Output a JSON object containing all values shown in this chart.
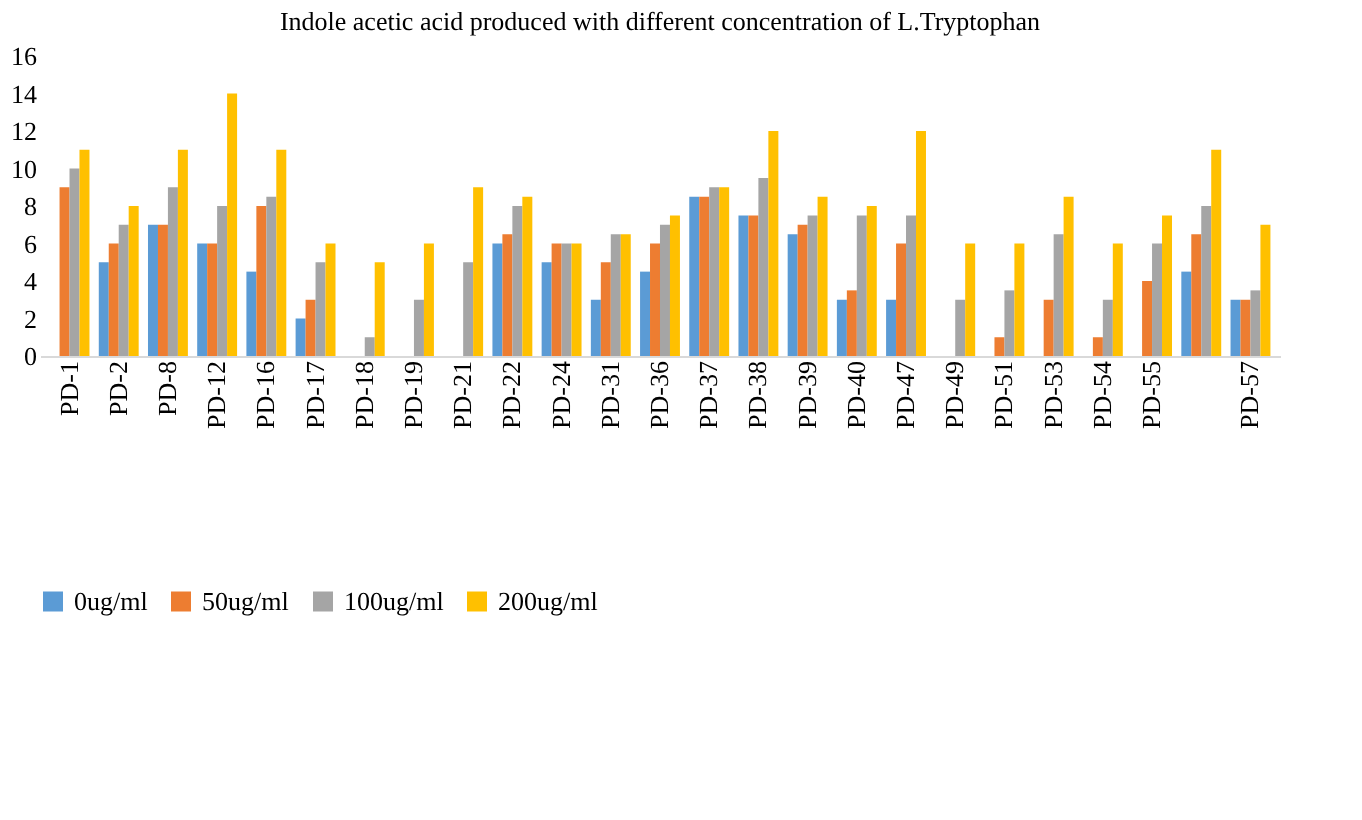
{
  "chart_data": {
    "type": "bar",
    "title": "Indole acetic acid produced with different concentration of  L.Tryptophan",
    "categories": [
      "PD-1",
      "PD-2",
      "PD-8",
      "PD-12",
      "PD-16",
      "PD-17",
      "PD-18",
      "PD-19",
      "PD-21",
      "PD-22",
      "PD-24",
      "PD-31",
      "PD-36",
      "PD-37",
      "PD-38",
      "PD-39",
      "PD-40",
      "PD-47",
      "PD-49",
      "PD-51",
      "PD-53",
      "PD-54",
      "PD-55",
      null,
      "PD-57"
    ],
    "series": [
      {
        "name": "0ug/ml",
        "color": "#5b9bd5",
        "values": [
          0,
          5,
          7,
          6,
          4.5,
          2,
          0,
          0,
          0,
          6,
          5,
          3,
          4.5,
          8.5,
          7.5,
          6.5,
          3,
          3,
          0,
          0,
          0,
          0,
          0,
          4.5,
          3
        ]
      },
      {
        "name": "50ug/ml",
        "color": "#ed7d31",
        "values": [
          9,
          6,
          7,
          6,
          8,
          3,
          0,
          0,
          0,
          6.5,
          6,
          5,
          6,
          8.5,
          7.5,
          7,
          3.5,
          6,
          0,
          1,
          3,
          1,
          4,
          6.5,
          3
        ]
      },
      {
        "name": "100ug/ml",
        "color": "#a5a5a5",
        "values": [
          10,
          7,
          9,
          8,
          8.5,
          5,
          1,
          3,
          5,
          8,
          6,
          6.5,
          7,
          9,
          9.5,
          7.5,
          7.5,
          7.5,
          3,
          3.5,
          6.5,
          3,
          6,
          8,
          3.5
        ]
      },
      {
        "name": "200ug/ml",
        "color": "#ffc000",
        "values": [
          11,
          8,
          11,
          14,
          11,
          6,
          5,
          6,
          9,
          8.5,
          6,
          6.5,
          7.5,
          9,
          12,
          8.5,
          8,
          12,
          6,
          6,
          8.5,
          6,
          7.5,
          11,
          7
        ]
      }
    ],
    "ylim": [
      0,
      16
    ],
    "yticks": [
      0,
      2,
      4,
      6,
      8,
      10,
      12,
      14,
      16
    ],
    "grid": false,
    "legend": "bottom"
  }
}
